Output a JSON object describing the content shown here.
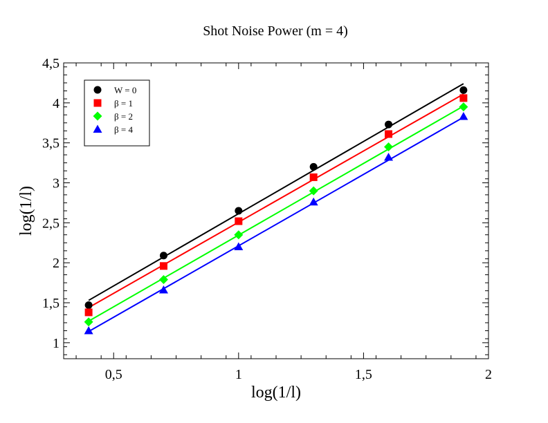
{
  "chart_data": {
    "type": "scatter",
    "title": "Shot Noise Power (m = 4)",
    "xlabel": "log(1/l)",
    "ylabel": "log(1/l)",
    "xlim": [
      0.3,
      2.0
    ],
    "ylim": [
      0.8,
      4.5
    ],
    "x_ticks": [
      0.5,
      1.0,
      1.5,
      2.0
    ],
    "x_tick_labels": [
      "0,5",
      "1",
      "1,5",
      "2"
    ],
    "y_ticks": [
      1.0,
      1.5,
      2.0,
      2.5,
      3.0,
      3.5,
      4.0,
      4.5
    ],
    "y_tick_labels": [
      "1",
      "1,5",
      "2",
      "2,5",
      "3",
      "3,5",
      "4",
      "4,5"
    ],
    "grid": false,
    "legend_position": "top-left",
    "series": [
      {
        "name": "W = 0",
        "marker": "circle",
        "color": "#000000",
        "x": [
          0.4,
          0.7,
          1.0,
          1.3,
          1.6,
          1.9
        ],
        "y": [
          1.47,
          2.09,
          2.65,
          3.2,
          3.73,
          4.16
        ],
        "fit": [
          [
            0.4,
            1.53
          ],
          [
            1.9,
            4.24
          ]
        ]
      },
      {
        "name": "β = 1",
        "marker": "square",
        "color": "#ff0000",
        "x": [
          0.4,
          0.7,
          1.0,
          1.3,
          1.6,
          1.9
        ],
        "y": [
          1.38,
          1.96,
          2.52,
          3.07,
          3.61,
          4.06
        ],
        "fit": [
          [
            0.4,
            1.44
          ],
          [
            1.9,
            4.11
          ]
        ]
      },
      {
        "name": "β = 2",
        "marker": "diamond",
        "color": "#00ff00",
        "x": [
          0.4,
          0.7,
          1.0,
          1.3,
          1.6,
          1.9
        ],
        "y": [
          1.26,
          1.79,
          2.35,
          2.9,
          3.45,
          3.95
        ],
        "fit": [
          [
            0.4,
            1.27
          ],
          [
            1.9,
            3.96
          ]
        ]
      },
      {
        "name": "β = 4",
        "marker": "triangle",
        "color": "#0000ff",
        "x": [
          0.4,
          0.7,
          1.0,
          1.3,
          1.6,
          1.9
        ],
        "y": [
          1.15,
          1.66,
          2.2,
          2.76,
          3.32,
          3.83
        ],
        "fit": [
          [
            0.4,
            1.14
          ],
          [
            1.9,
            3.82
          ]
        ]
      }
    ]
  }
}
